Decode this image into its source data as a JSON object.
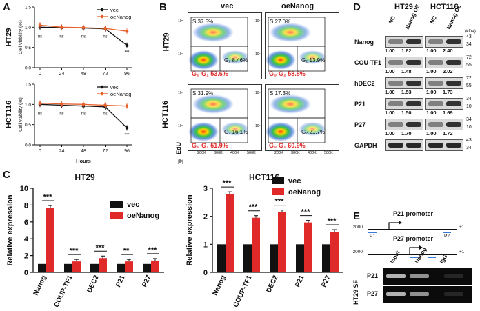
{
  "panels": {
    "A": "A",
    "B": "B",
    "C": "C",
    "D": "D",
    "E": "E"
  },
  "panel_a": {
    "ylabel": "Cell viability (%)",
    "xlabel": "Hours",
    "xticks": [
      "0",
      "24",
      "48",
      "72",
      "96"
    ],
    "yticks": [
      "0.0",
      "0.5",
      "1.0",
      "1.5"
    ],
    "legend": [
      "vec",
      "oeNanog"
    ],
    "colors": {
      "vec": "#111111",
      "oe": "#e8602c"
    },
    "plots": [
      {
        "row_label": "HT29",
        "vec": [
          1.0,
          0.99,
          0.98,
          0.96,
          0.55
        ],
        "oe": [
          1.05,
          1.0,
          0.99,
          0.97,
          0.9
        ],
        "sig": [
          "ns",
          "ns",
          "ns",
          "ns",
          "***"
        ]
      },
      {
        "row_label": "HCT116",
        "vec": [
          1.0,
          0.98,
          0.96,
          0.94,
          0.42
        ],
        "oe": [
          1.03,
          1.01,
          1.0,
          0.98,
          0.96
        ],
        "sig": [
          "ns",
          "ns",
          "ns",
          "ns",
          "***"
        ]
      }
    ]
  },
  "panel_b": {
    "col_labels": [
      "vec",
      "oeNanog"
    ],
    "row_labels": [
      "HT29",
      "HCT116"
    ],
    "y_axis": "EdU",
    "x_axis": "PI",
    "xticks": [
      "200K",
      "300K",
      "400K",
      "500K"
    ],
    "yticks": [
      "10⁴",
      "10⁵"
    ],
    "plots": [
      {
        "s": "S 37.5%",
        "g2": "G₂ 8.46%",
        "g0": "G₀-G₁ 53.6%"
      },
      {
        "s": "S 27.0%",
        "g2": "G₂ 13.9%",
        "g0": "G₀-G₁ 58.8%"
      },
      {
        "s": "S 31.9%",
        "g2": "G₂ 16.1%",
        "g0": "G₀-G₁ 51.9%"
      },
      {
        "s": "S 17.3%",
        "g2": "G₂ 21.7%",
        "g0": "G₀-G₁ 60.9%"
      }
    ]
  },
  "panel_c": {
    "ylabel": "Relative expression",
    "legend": [
      "vec",
      "oeNanog"
    ],
    "colors": {
      "vec": "#111111",
      "oe": "#e02a2a"
    },
    "charts": [
      {
        "title": "HT29",
        "categories": [
          "Nanog",
          "COUP-TF1",
          "DEC2",
          "P21",
          "P27"
        ],
        "vec": [
          1,
          1,
          1,
          1,
          1
        ],
        "oe": [
          7.7,
          1.3,
          1.7,
          1.3,
          1.4
        ],
        "sig": [
          "***",
          "***",
          "***",
          "**",
          "***"
        ],
        "ylim": [
          0,
          10
        ],
        "yticks": [
          "0",
          "2",
          "4",
          "6",
          "8",
          "10"
        ]
      },
      {
        "title": "HCT116",
        "categories": [
          "Nanog",
          "COUP-TF1",
          "DEC2",
          "P21",
          "P27"
        ],
        "vec": [
          1,
          1,
          1,
          1,
          1
        ],
        "oe": [
          2.8,
          1.95,
          2.15,
          1.78,
          1.45
        ],
        "sig": [
          "***",
          "***",
          "***",
          "***",
          "***"
        ],
        "ylim": [
          0,
          3
        ],
        "yticks": [
          "0",
          "1",
          "2",
          "3"
        ]
      }
    ]
  },
  "panel_d": {
    "headers": [
      "HT29",
      "HCT116"
    ],
    "lane_labels": [
      "NC",
      "Nanog OE",
      "NC",
      "Nanog OE"
    ],
    "kda": "(kDa)",
    "rows": [
      {
        "name": "Nanog",
        "vals": [
          "1.00",
          "1.62",
          "1.00",
          "2.40"
        ],
        "markers": [
          "43",
          "34"
        ]
      },
      {
        "name": "COU-TF1",
        "vals": [
          "1.00",
          "1.48",
          "1.00",
          "2.02"
        ],
        "markers": [
          "72",
          "55"
        ]
      },
      {
        "name": "hDEC2",
        "vals": [
          "1.00",
          "1.53",
          "1.00",
          "1.73"
        ],
        "markers": [
          "72",
          "55"
        ]
      },
      {
        "name": "P21",
        "vals": [
          "1.00",
          "1.50",
          "1.00",
          "1.69"
        ],
        "markers": [
          "34",
          "10"
        ]
      },
      {
        "name": "P27",
        "vals": [
          "1.00",
          "1.70",
          "1.00",
          "1.72"
        ],
        "markers": [
          "34",
          "10"
        ]
      },
      {
        "name": "GAPDH",
        "vals": [],
        "markers": [
          "43",
          "34"
        ]
      }
    ]
  },
  "panel_e": {
    "p21_title": "P21 promoter",
    "p27_title": "P27 promoter",
    "start": "-2000",
    "end": "+1",
    "primers": [
      "P1",
      "P2"
    ],
    "gel_cols": [
      "Input",
      "Nanog",
      "IgG"
    ],
    "gel_rows": [
      "P21",
      "P27"
    ],
    "side_label": "HT29 SF"
  }
}
